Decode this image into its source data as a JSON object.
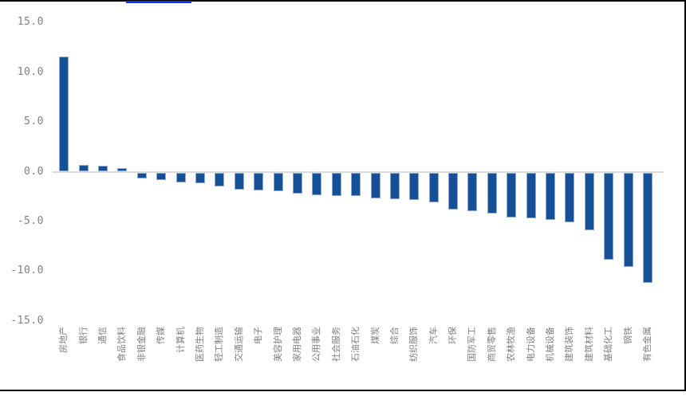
{
  "chart_data": {
    "type": "bar",
    "title": "",
    "xlabel": "",
    "ylabel": "",
    "categories": [
      "房地产",
      "银行",
      "通信",
      "食品饮料",
      "非银金融",
      "传媒",
      "计算机",
      "医药生物",
      "轻工制造",
      "交通运输",
      "电子",
      "美容护理",
      "家用电器",
      "公用事业",
      "社会服务",
      "石油石化",
      "煤炭",
      "综合",
      "纺织服饰",
      "汽车",
      "环保",
      "国防军工",
      "商贸零售",
      "农林牧渔",
      "电力设备",
      "机械设备",
      "建筑装饰",
      "建筑材料",
      "基础化工",
      "钢铁",
      "有色金属"
    ],
    "values": [
      11.6,
      0.7,
      0.6,
      0.4,
      -0.6,
      -0.8,
      -1.0,
      -1.1,
      -1.4,
      -1.7,
      -1.8,
      -1.9,
      -2.1,
      -2.3,
      -2.4,
      -2.4,
      -2.6,
      -2.7,
      -2.8,
      -3.0,
      -3.7,
      -3.9,
      -4.1,
      -4.5,
      -4.6,
      -4.8,
      -5.0,
      -5.8,
      -8.8,
      -9.5,
      -11.1
    ],
    "ylim": [
      -15,
      15
    ],
    "yticks": [
      15,
      10,
      5,
      0,
      -5,
      -10,
      -15
    ],
    "ytick_labels": [
      "15.0",
      "10.0",
      "5.0",
      "0.0",
      "-5.0",
      "-10.0",
      "-15.0"
    ],
    "grid": false,
    "legend": null,
    "colors": {
      "bar_fill": "#154F94",
      "bar_border": "#8FA9DC",
      "axis_text": "#808080",
      "zero_line": "#DBDBDB",
      "frame_border": "#000000",
      "top_accent": "#1035EE",
      "background": "#FFFFFF"
    }
  }
}
